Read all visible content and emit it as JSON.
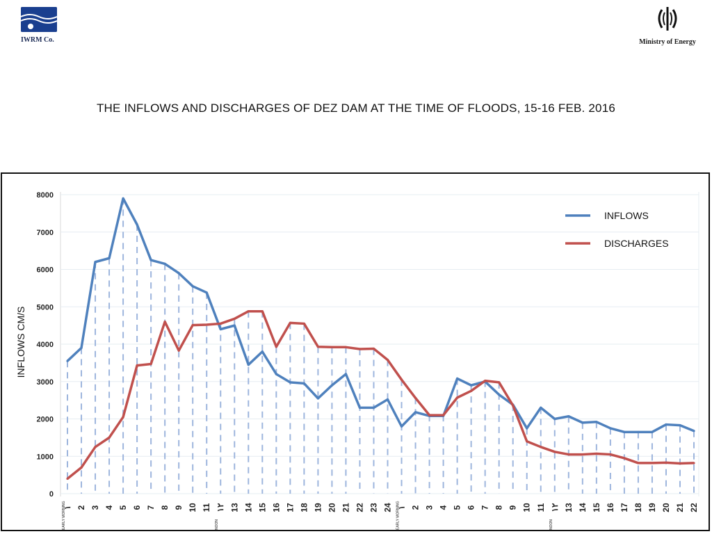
{
  "header": {
    "left_logo_caption": "IWRM Co.",
    "right_logo_caption": "Ministry of Energy",
    "title": "THE INFLOWS AND DISCHARGES OF DEZ  DAM AT THE TIME OF FLOODS, 15-16 FEB. 2016"
  },
  "chart_data": {
    "type": "line",
    "ylabel": "INFLOWS CM/S",
    "ylim": [
      0,
      8000
    ],
    "yticks": [
      0,
      1000,
      2000,
      3000,
      4000,
      5000,
      6000,
      7000,
      8000
    ],
    "categories": [
      "١",
      "2",
      "3",
      "4",
      "5",
      "6",
      "7",
      "8",
      "9",
      "10",
      "11",
      "١٢",
      "13",
      "14",
      "15",
      "16",
      "17",
      "18",
      "19",
      "20",
      "21",
      "22",
      "23",
      "24",
      "١",
      "2",
      "3",
      "4",
      "5",
      "6",
      "7",
      "8",
      "9",
      "10",
      "11",
      "١٢",
      "13",
      "14",
      "15",
      "16",
      "17",
      "18",
      "19",
      "20",
      "21",
      "22"
    ],
    "annotations": [
      {
        "index": 0,
        "text": "EARLY MORNING"
      },
      {
        "index": 11,
        "text": "NOON"
      },
      {
        "index": 24,
        "text": "EARLY MORNING"
      },
      {
        "index": 35,
        "text": "NOON"
      }
    ],
    "legend_position": "top-right",
    "series": [
      {
        "name": "INFLOWS",
        "color": "#4f81bd",
        "values": [
          3550,
          3900,
          6200,
          6300,
          7900,
          7200,
          6250,
          6150,
          5900,
          5550,
          5380,
          4400,
          4500,
          3450,
          3800,
          3200,
          2980,
          2950,
          2550,
          2900,
          3200,
          2300,
          2300,
          2520,
          1800,
          2180,
          2080,
          2080,
          3080,
          2900,
          3000,
          2650,
          2380,
          1750,
          2300,
          2000,
          2070,
          1900,
          1920,
          1750,
          1650,
          1650,
          1650,
          1850,
          1830,
          1680
        ]
      },
      {
        "name": "DISCHARGES",
        "color": "#c0504d",
        "values": [
          400,
          700,
          1250,
          1500,
          2050,
          3430,
          3470,
          4600,
          3830,
          4510,
          4520,
          4550,
          4680,
          4880,
          4880,
          3930,
          4570,
          4550,
          3930,
          3920,
          3920,
          3870,
          3880,
          3580,
          3050,
          2560,
          2100,
          2100,
          2570,
          2750,
          3020,
          2980,
          2360,
          1400,
          1250,
          1120,
          1050,
          1050,
          1070,
          1050,
          950,
          820,
          820,
          830,
          810,
          820
        ]
      }
    ]
  }
}
